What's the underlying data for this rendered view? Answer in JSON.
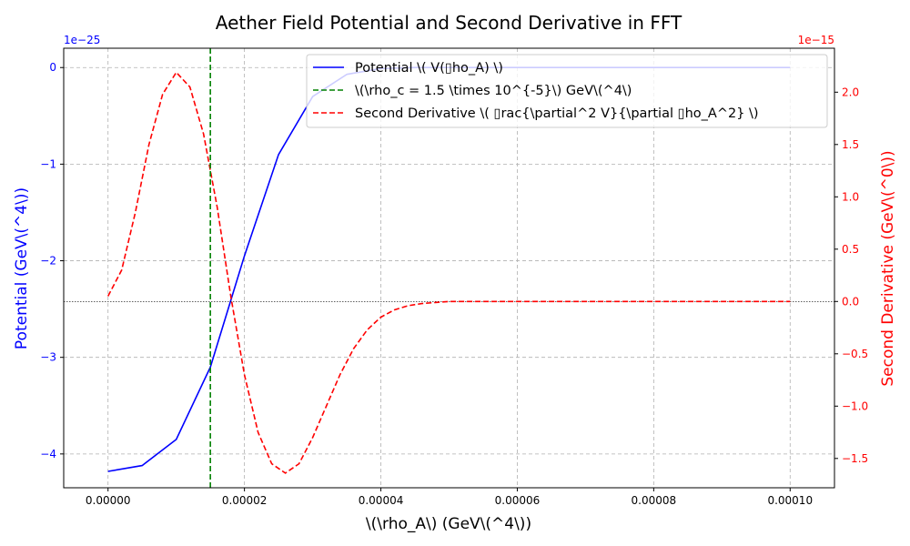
{
  "chart_data": {
    "type": "line",
    "title": "Aether Field Potential and Second Derivative in FFT",
    "xlabel": "\\(\\rho_A\\) (GeV\\(^4\\))",
    "ylabel_left": "Potential (GeV\\(^4\\))",
    "ylabel_right": "Second Derivative (GeV\\(^0\\))",
    "left_offset": "1e−25",
    "right_offset": "1e−15",
    "xlim": [
      -6.5e-06,
      0.0001065
    ],
    "ylim_left": [
      -4.35,
      0.2
    ],
    "ylim_right": [
      -1.78,
      2.42
    ],
    "x_ticks": [
      {
        "v": 0,
        "label": "0.00000"
      },
      {
        "v": 2e-05,
        "label": "0.00002"
      },
      {
        "v": 4e-05,
        "label": "0.00004"
      },
      {
        "v": 6e-05,
        "label": "0.00006"
      },
      {
        "v": 8e-05,
        "label": "0.00008"
      },
      {
        "v": 0.0001,
        "label": "0.00010"
      }
    ],
    "y_ticks_left": [
      {
        "v": 0,
        "label": "0"
      },
      {
        "v": -1,
        "label": "−1"
      },
      {
        "v": -2,
        "label": "−2"
      },
      {
        "v": -3,
        "label": "−3"
      },
      {
        "v": -4,
        "label": "−4"
      }
    ],
    "y_ticks_right": [
      {
        "v": 2.0,
        "label": "2.0"
      },
      {
        "v": 1.5,
        "label": "1.5"
      },
      {
        "v": 1.0,
        "label": "1.0"
      },
      {
        "v": 0.5,
        "label": "0.5"
      },
      {
        "v": 0.0,
        "label": "0.0"
      },
      {
        "v": -0.5,
        "label": "−0.5"
      },
      {
        "v": -1.0,
        "label": "−1.0"
      },
      {
        "v": -1.5,
        "label": "−1.5"
      }
    ],
    "grid": true,
    "legend_position": "top-right",
    "series": [
      {
        "name": "Potential \\( V(▯ho_A) \\)",
        "axis": "left",
        "color": "#0000ff",
        "style": "solid",
        "x": [
          0,
          5e-06,
          1e-05,
          1.5e-05,
          2e-05,
          2.5e-05,
          3e-05,
          3.5e-05,
          4e-05,
          4.5e-05,
          5e-05,
          6e-05,
          7e-05,
          8e-05,
          9e-05,
          0.0001
        ],
        "y": [
          -4.18,
          -4.12,
          -3.85,
          -3.1,
          -1.95,
          -0.9,
          -0.3,
          -0.07,
          -0.01,
          0.0,
          0.0,
          0.0,
          0.0,
          0.0,
          0.0,
          0.0
        ]
      },
      {
        "name": "\\(\\rho_c = 1.5 \\times 10^{-5}\\) GeV\\(^4\\)",
        "axis": "left",
        "color": "#008000",
        "style": "dashed",
        "vline_x": 1.5e-05
      },
      {
        "name": "Second Derivative \\( ▯rac{\\partial^2 V}{\\partial ▯ho_A^2} \\)",
        "axis": "right",
        "color": "#ff0000",
        "style": "dashed",
        "x": [
          0,
          2e-06,
          4e-06,
          6e-06,
          8e-06,
          1e-05,
          1.2e-05,
          1.4e-05,
          1.6e-05,
          1.8e-05,
          2e-05,
          2.2e-05,
          2.4e-05,
          2.6e-05,
          2.8e-05,
          3e-05,
          3.2e-05,
          3.4e-05,
          3.6e-05,
          3.8e-05,
          4e-05,
          4.2e-05,
          4.4e-05,
          4.6e-05,
          4.8e-05,
          5e-05,
          6e-05,
          7e-05,
          8e-05,
          9e-05,
          0.0001
        ],
        "y": [
          0.05,
          0.3,
          0.85,
          1.5,
          1.98,
          2.19,
          2.05,
          1.6,
          0.9,
          0.05,
          -0.7,
          -1.25,
          -1.55,
          -1.64,
          -1.55,
          -1.3,
          -1.0,
          -0.7,
          -0.45,
          -0.27,
          -0.15,
          -0.08,
          -0.04,
          -0.02,
          -0.01,
          0.0,
          0.0,
          0.0,
          0.0,
          0.0,
          0.0
        ]
      }
    ],
    "hline_right": 0
  }
}
